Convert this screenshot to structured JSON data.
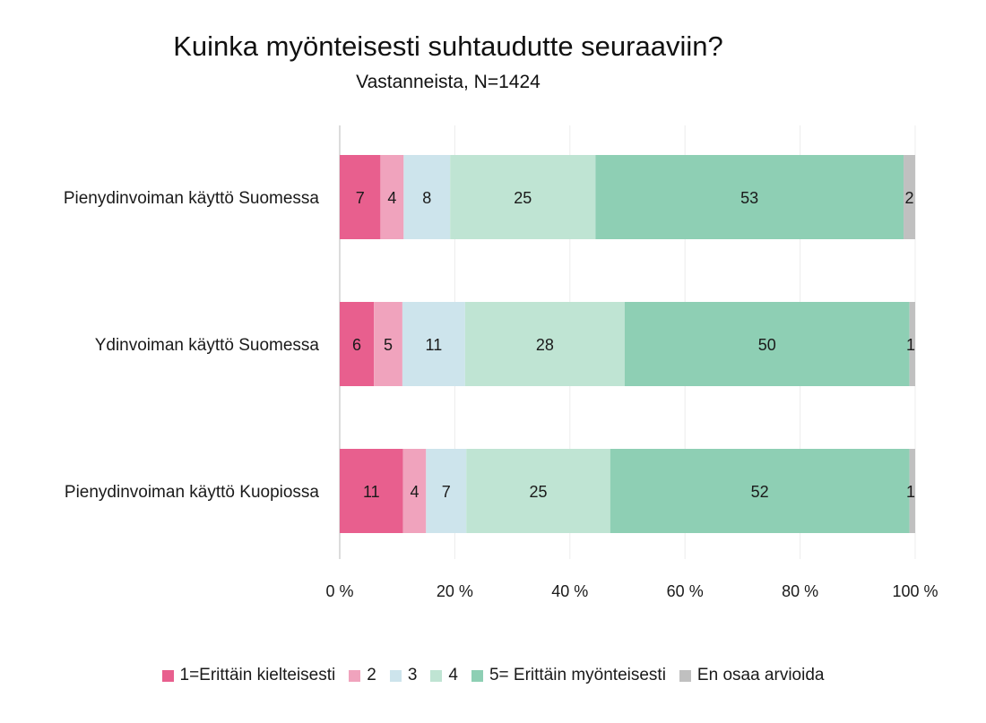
{
  "chart_data": {
    "type": "bar",
    "orientation": "horizontal",
    "stacked": true,
    "title": "Kuinka myönteisesti suhtaudutte seuraaviin?",
    "subtitle": "Vastanneista, N=1424",
    "categories": [
      "Pienydinvoiman käyttö Suomessa",
      "Ydinvoiman käyttö Suomessa",
      "Pienydinvoiman käyttö Kuopiossa"
    ],
    "series": [
      {
        "name": "1=Erittäin kielteisesti",
        "color": "#e85f8e",
        "values": [
          7,
          6,
          11
        ]
      },
      {
        "name": "2",
        "color": "#f0a3bd",
        "values": [
          4,
          5,
          4
        ]
      },
      {
        "name": "3",
        "color": "#cde4ec",
        "values": [
          8,
          11,
          7
        ]
      },
      {
        "name": "4",
        "color": "#bfe4d3",
        "values": [
          25,
          28,
          25
        ]
      },
      {
        "name": "5= Erittäin myönteisesti",
        "color": "#8ecfb4",
        "values": [
          53,
          50,
          52
        ]
      },
      {
        "name": "En osaa arvioida",
        "color": "#c0c0c0",
        "values": [
          2,
          1,
          1
        ]
      }
    ],
    "xlim": [
      0,
      100
    ],
    "xticks": [
      "0 %",
      "20 %",
      "40 %",
      "60 %",
      "80 %",
      "100 %"
    ],
    "grid": true,
    "legend_position": "bottom"
  }
}
